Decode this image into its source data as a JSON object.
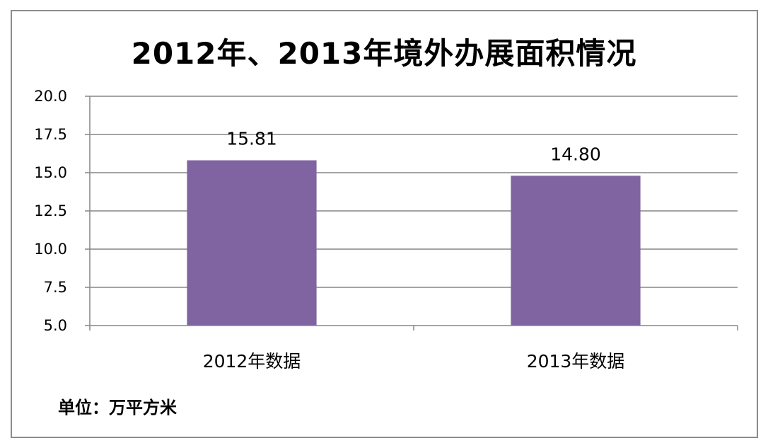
{
  "chart_data": {
    "type": "bar",
    "title": "2012年、2013年境外办展面积情况",
    "categories": [
      "2012年数据",
      "2013年数据"
    ],
    "values": [
      15.81,
      14.8
    ],
    "data_labels": [
      "15.81",
      "14.80"
    ],
    "ylim": [
      5.0,
      20.0
    ],
    "yticks": [
      "5.0",
      "7.5",
      "10.0",
      "12.5",
      "15.0",
      "17.5",
      "20.0"
    ],
    "ytick_values": [
      5.0,
      7.5,
      10.0,
      12.5,
      15.0,
      17.5,
      20.0
    ],
    "grid": true,
    "legend": "none",
    "bar_color": "#8064a2",
    "unit_note": "单位：万平方米"
  }
}
